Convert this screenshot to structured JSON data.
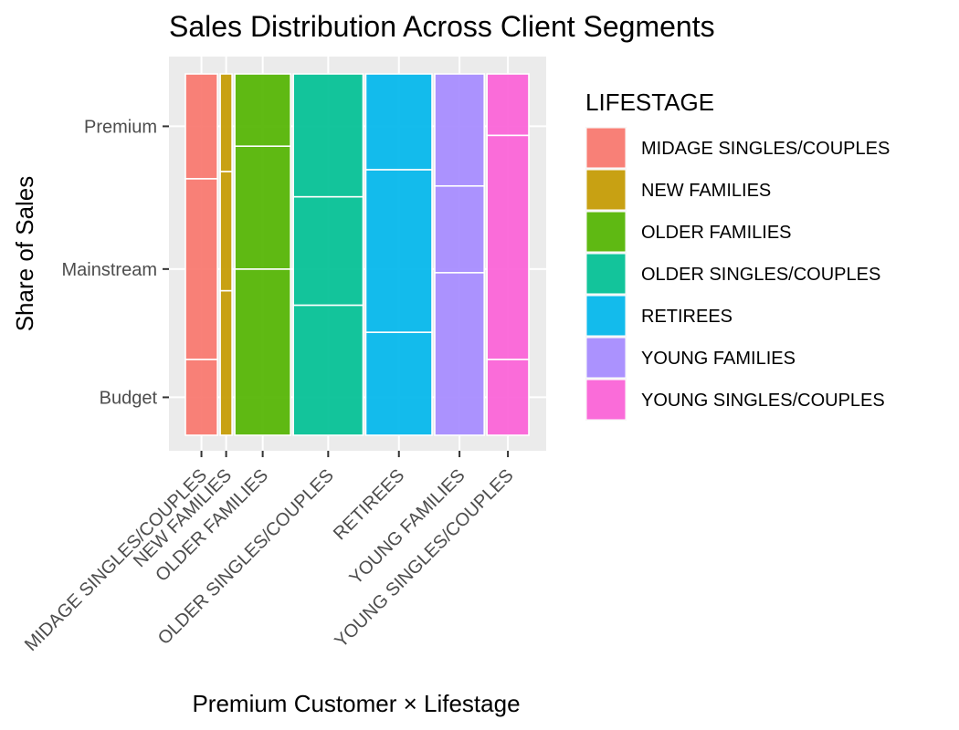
{
  "chart_data": {
    "type": "mosaic",
    "title": "Sales Distribution Across Client Segments",
    "xlabel": "Premium Customer × Lifestage",
    "ylabel": "Share of Sales",
    "ylim": [
      0,
      1
    ],
    "y_ticks": [
      {
        "label": "Budget",
        "value": 0.105
      },
      {
        "label": "Mainstream",
        "value": 0.46
      },
      {
        "label": "Premium",
        "value": 0.855
      }
    ],
    "legend": {
      "title": "LIFESTAGE",
      "position": "right"
    },
    "grid": true,
    "categories": [
      {
        "name": "MIDAGE SINGLES/COUPLES",
        "color": "#F8766D",
        "width": 0.092,
        "segments": {
          "Budget": 0.21,
          "Mainstream": 0.5,
          "Premium": 0.29
        }
      },
      {
        "name": "NEW FAMILIES",
        "color": "#C49A00",
        "width": 0.034,
        "segments": {
          "Budget": 0.4,
          "Mainstream": 0.33,
          "Premium": 0.27
        }
      },
      {
        "name": "OLDER FAMILIES",
        "color": "#53B400",
        "width": 0.16,
        "segments": {
          "Budget": 0.46,
          "Mainstream": 0.34,
          "Premium": 0.2
        }
      },
      {
        "name": "OLDER SINGLES/COUPLES",
        "color": "#00C094",
        "width": 0.2,
        "segments": {
          "Budget": 0.36,
          "Mainstream": 0.3,
          "Premium": 0.34
        }
      },
      {
        "name": "RETIREES",
        "color": "#00B6EB",
        "width": 0.19,
        "segments": {
          "Budget": 0.285,
          "Mainstream": 0.45,
          "Premium": 0.265
        }
      },
      {
        "name": "YOUNG FAMILIES",
        "color": "#A58AFF",
        "width": 0.142,
        "segments": {
          "Budget": 0.45,
          "Mainstream": 0.24,
          "Premium": 0.31
        }
      },
      {
        "name": "YOUNG SINGLES/COUPLES",
        "color": "#FB61D7",
        "width": 0.12,
        "segments": {
          "Budget": 0.21,
          "Mainstream": 0.62,
          "Premium": 0.17
        }
      }
    ]
  }
}
